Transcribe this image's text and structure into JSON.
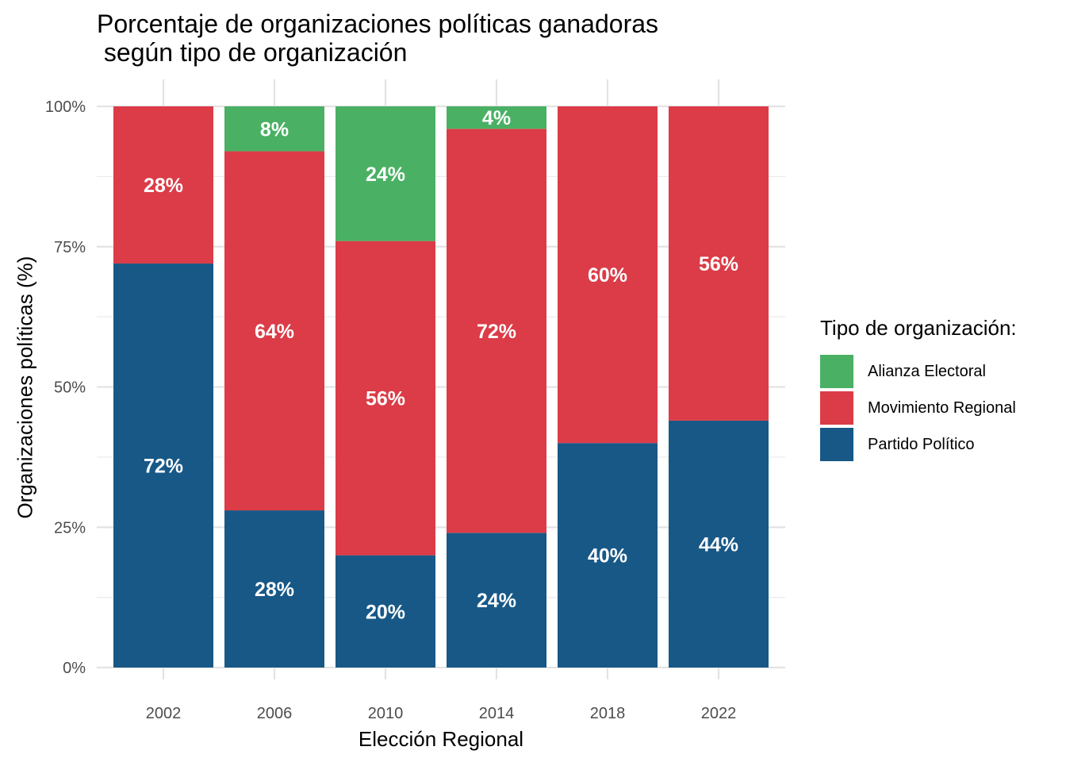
{
  "chart_data": {
    "type": "bar",
    "stacked": true,
    "title": "Porcentaje de organizaciones políticas ganadoras\n según tipo de organización",
    "title_lines": [
      "Porcentaje de organizaciones políticas ganadoras",
      " según tipo de organización"
    ],
    "xlabel": "Elección Regional",
    "ylabel": "Organizaciones políticas (%)",
    "categories": [
      "2002",
      "2006",
      "2010",
      "2014",
      "2018",
      "2022"
    ],
    "ylim": [
      0,
      100
    ],
    "yticks": [
      0,
      25,
      50,
      75,
      100
    ],
    "ytick_labels": [
      "0%",
      "25%",
      "50%",
      "75%",
      "100%"
    ],
    "grid": true,
    "legend_title": "Tipo de organización:",
    "legend_position": "right",
    "series": [
      {
        "name": "Partido Político",
        "color": "#175887",
        "values": [
          72,
          28,
          20,
          24,
          40,
          44
        ],
        "labels": [
          "72%",
          "28%",
          "20%",
          "24%",
          "40%",
          "44%"
        ]
      },
      {
        "name": "Movimiento Regional",
        "color": "#db3c47",
        "values": [
          28,
          64,
          56,
          72,
          60,
          56
        ],
        "labels": [
          "28%",
          "64%",
          "56%",
          "72%",
          "60%",
          "56%"
        ]
      },
      {
        "name": "Alianza Electoral",
        "color": "#4ab064",
        "values": [
          0,
          8,
          24,
          4,
          0,
          0
        ],
        "labels": [
          "",
          "8%",
          "24%",
          "4%",
          "",
          ""
        ]
      }
    ],
    "legend_order": [
      "Alianza Electoral",
      "Movimiento Regional",
      "Partido Político"
    ]
  }
}
